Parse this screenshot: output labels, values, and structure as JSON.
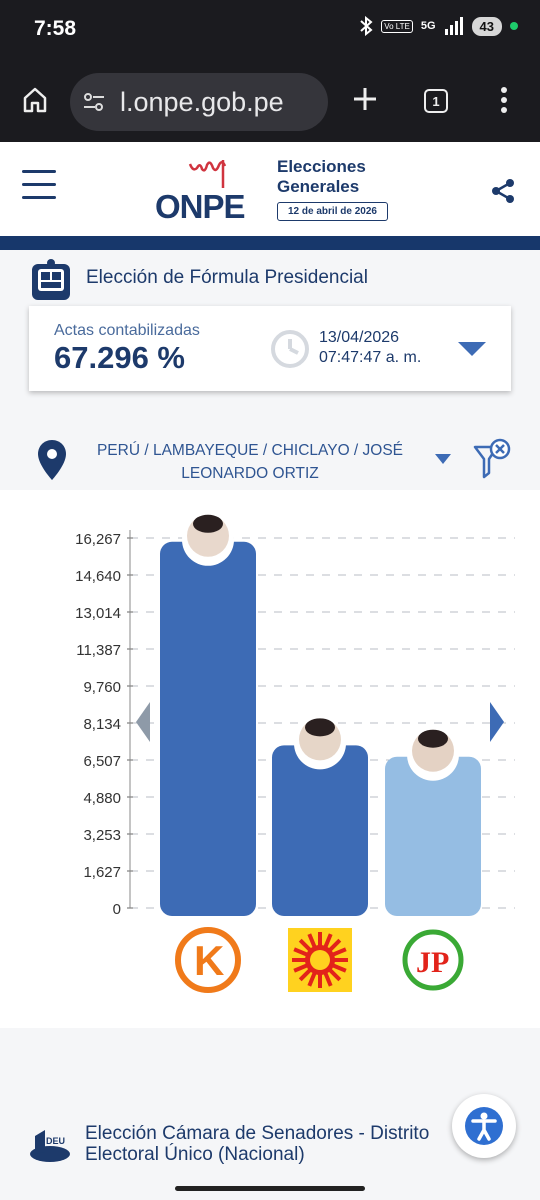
{
  "status": {
    "time": "7:58",
    "network": "5G",
    "volte": "Vo LTE",
    "battery": "43"
  },
  "browser": {
    "url": "l.onpe.gob.pe",
    "tab_count": "1"
  },
  "header": {
    "logo": "ONPE",
    "title_line1": "Elecciones",
    "title_line2": "Generales",
    "date_badge": "12 de abril de 2026"
  },
  "section": {
    "title": "Elección de Fórmula Presidencial"
  },
  "actas": {
    "label": "Actas contabilizadas",
    "value": "67.296 %",
    "date": "13/04/2026",
    "time": "07:47:47 a. m."
  },
  "location": {
    "path": "PERÚ / LAMBAYEQUE / CHICLAYO / JOSÉ LEONARDO ORTIZ"
  },
  "chart_data": {
    "type": "bar",
    "y_ticks": [
      "16,267",
      "14,640",
      "13,014",
      "11,387",
      "9,760",
      "8,134",
      "6,507",
      "4,880",
      "3,253",
      "1,627",
      "0"
    ],
    "ylim": [
      0,
      16267
    ],
    "categories": [
      "Candidate 1 (K)",
      "Candidate 2 (Sun)",
      "Candidate 3 (JP)"
    ],
    "values": [
      16100,
      7150,
      6650
    ],
    "colors": [
      "#3d6bb5",
      "#3d6bb5",
      "#95bde3"
    ],
    "grid": true
  },
  "senado": {
    "title": "Elección Cámara de Senadores - Distrito Electoral Único (Nacional)",
    "badge": "DEU"
  },
  "colors": {
    "navy": "#1d3a6b",
    "accent": "#3d6bb5",
    "light_bar": "#95bde3"
  }
}
